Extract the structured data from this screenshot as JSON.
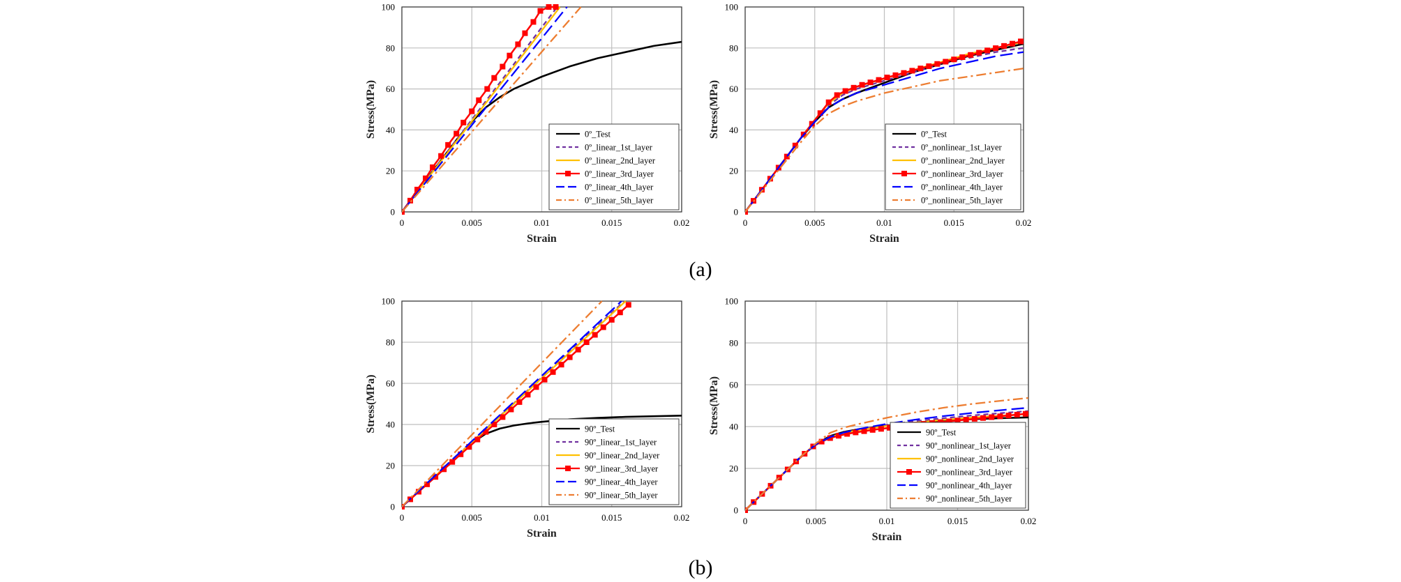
{
  "captions": {
    "a": "(a)",
    "b": "(b)"
  },
  "chart_data": [
    {
      "type": "line",
      "panel": "a",
      "position": "left",
      "xlabel": "Strain",
      "ylabel": "Stress(MPa)",
      "xlim": [
        0,
        0.02
      ],
      "ylim": [
        0,
        100
      ],
      "xticks": [
        "0",
        "0.005",
        "0.01",
        "0.015",
        "0.02"
      ],
      "yticks": [
        "0",
        "20",
        "40",
        "60",
        "80",
        "100"
      ],
      "grid": true,
      "legend_position": "bottom-right",
      "series": [
        {
          "name": "0º_Test",
          "color": "#000000",
          "style": "solid",
          "x": [
            0,
            0.001,
            0.002,
            0.003,
            0.004,
            0.005,
            0.006,
            0.007,
            0.008,
            0.009,
            0.01,
            0.012,
            0.014,
            0.016,
            0.018,
            0.02
          ],
          "y": [
            0,
            9,
            18,
            27,
            36,
            44,
            51,
            56,
            60,
            63,
            66,
            71,
            75,
            78,
            81,
            83
          ]
        },
        {
          "name": "0º_linear_1st_layer",
          "color": "#7030a0",
          "style": "dash",
          "x": [
            0,
            0.0111
          ],
          "y": [
            0,
            100
          ]
        },
        {
          "name": "0º_linear_2nd_layer",
          "color": "#ffc000",
          "style": "solid",
          "x": [
            0,
            0.0113
          ],
          "y": [
            0,
            100
          ]
        },
        {
          "name": "0º_linear_3rd_layer",
          "color": "#ff0000",
          "style": "solid-square",
          "x": [
            0,
            0.0006,
            0.0011,
            0.0017,
            0.0022,
            0.0028,
            0.0033,
            0.0039,
            0.0044,
            0.005,
            0.0055,
            0.0061,
            0.0066,
            0.0072,
            0.0077,
            0.0083,
            0.0088,
            0.0094,
            0.0099,
            0.0105,
            0.011
          ],
          "y": [
            0,
            5.5,
            10.9,
            16.4,
            21.8,
            27.3,
            32.7,
            38.2,
            43.6,
            49.1,
            54.5,
            60,
            65.4,
            70.9,
            76.3,
            81.8,
            87.2,
            92.7,
            98.1,
            100,
            100
          ]
        },
        {
          "name": "0º_linear_4th_layer",
          "color": "#0000ff",
          "style": "longdash",
          "x": [
            0,
            0.0118
          ],
          "y": [
            0,
            100
          ]
        },
        {
          "name": "0º_linear_5th_layer",
          "color": "#ed7d31",
          "style": "dashdot",
          "x": [
            0,
            0.0128
          ],
          "y": [
            0,
            100
          ]
        }
      ]
    },
    {
      "type": "line",
      "panel": "a",
      "position": "right",
      "xlabel": "Strain",
      "ylabel": "Stress(MPa)",
      "xlim": [
        0,
        0.02
      ],
      "ylim": [
        0,
        100
      ],
      "xticks": [
        "0",
        "0.005",
        "0.01",
        "0.015",
        "0.02"
      ],
      "yticks": [
        "0",
        "20",
        "40",
        "60",
        "80",
        "100"
      ],
      "grid": true,
      "legend_position": "bottom-right",
      "series": [
        {
          "name": "0º_Test",
          "color": "#000000",
          "style": "solid",
          "x": [
            0,
            0.001,
            0.002,
            0.003,
            0.004,
            0.005,
            0.006,
            0.007,
            0.008,
            0.01,
            0.012,
            0.014,
            0.016,
            0.018,
            0.02
          ],
          "y": [
            0,
            9,
            18,
            27,
            36,
            44,
            51,
            55,
            58,
            63,
            68,
            72,
            76,
            79,
            82
          ]
        },
        {
          "name": "0º_nonlinear_1st_layer",
          "color": "#7030a0",
          "style": "dash",
          "x": [
            0,
            0.001,
            0.002,
            0.003,
            0.004,
            0.005,
            0.006,
            0.007,
            0.008,
            0.01,
            0.012,
            0.014,
            0.016,
            0.018,
            0.02
          ],
          "y": [
            0,
            9,
            18,
            27,
            36,
            45,
            52,
            57,
            60,
            64,
            68,
            72,
            75,
            78,
            80
          ]
        },
        {
          "name": "0º_nonlinear_2nd_layer",
          "color": "#ffc000",
          "style": "solid",
          "x": [
            0,
            0.001,
            0.002,
            0.003,
            0.004,
            0.005,
            0.006,
            0.007,
            0.008,
            0.01,
            0.012,
            0.014,
            0.016,
            0.018,
            0.02
          ],
          "y": [
            0,
            9,
            18,
            27,
            36,
            45,
            53,
            58,
            61,
            65,
            69,
            73,
            77,
            80,
            83
          ]
        },
        {
          "name": "0º_nonlinear_3rd_layer",
          "color": "#ff0000",
          "style": "solid-square",
          "x": [
            0,
            0.0006,
            0.0012,
            0.0018,
            0.0024,
            0.003,
            0.0036,
            0.0042,
            0.0048,
            0.0054,
            0.006,
            0.0066,
            0.0072,
            0.0078,
            0.0084,
            0.009,
            0.0096,
            0.0102,
            0.0108,
            0.0114,
            0.012,
            0.0126,
            0.0132,
            0.0138,
            0.0144,
            0.015,
            0.0156,
            0.0162,
            0.0168,
            0.0174,
            0.018,
            0.0186,
            0.0192,
            0.0198
          ],
          "y": [
            0,
            5.4,
            10.8,
            16.2,
            21.6,
            27,
            32.4,
            37.8,
            43,
            48.2,
            53.5,
            57,
            59,
            60.6,
            62,
            63.2,
            64.4,
            65.6,
            66.7,
            67.8,
            68.9,
            70,
            71.1,
            72.2,
            73.3,
            74.4,
            75.5,
            76.6,
            77.7,
            78.8,
            79.9,
            81,
            82.1,
            83.2
          ]
        },
        {
          "name": "0º_nonlinear_4th_layer",
          "color": "#0000ff",
          "style": "longdash",
          "x": [
            0,
            0.001,
            0.002,
            0.003,
            0.004,
            0.005,
            0.006,
            0.007,
            0.008,
            0.01,
            0.012,
            0.014,
            0.016,
            0.018,
            0.02
          ],
          "y": [
            0,
            9,
            18,
            27,
            36,
            44,
            51,
            55,
            58,
            62,
            66,
            70,
            73,
            76,
            78
          ]
        },
        {
          "name": "0º_nonlinear_5th_layer",
          "color": "#ed7d31",
          "style": "dashdot",
          "x": [
            0,
            0.001,
            0.002,
            0.003,
            0.004,
            0.005,
            0.006,
            0.007,
            0.008,
            0.01,
            0.012,
            0.014,
            0.016,
            0.018,
            0.02
          ],
          "y": [
            0,
            8.5,
            17,
            25.5,
            34,
            42,
            48,
            51.5,
            54,
            58,
            61,
            64,
            66,
            68,
            70
          ]
        }
      ]
    },
    {
      "type": "line",
      "panel": "b",
      "position": "left",
      "xlabel": "Strain",
      "ylabel": "Stress(MPa)",
      "xlim": [
        0,
        0.02
      ],
      "ylim": [
        0,
        100
      ],
      "xticks": [
        "0",
        "0.005",
        "0.01",
        "0.015",
        "0.02"
      ],
      "yticks": [
        "0",
        "20",
        "40",
        "60",
        "80",
        "100"
      ],
      "grid": true,
      "legend_position": "bottom-right",
      "series": [
        {
          "name": "90º_Test",
          "color": "#000000",
          "style": "solid",
          "x": [
            0,
            0.001,
            0.002,
            0.003,
            0.004,
            0.005,
            0.006,
            0.007,
            0.008,
            0.009,
            0.01,
            0.012,
            0.014,
            0.016,
            0.018,
            0.02
          ],
          "y": [
            0,
            6.2,
            12.4,
            18.6,
            24.8,
            31,
            35.5,
            38,
            39.5,
            40.5,
            41.3,
            42.5,
            43.2,
            43.7,
            44,
            44.3
          ]
        },
        {
          "name": "90º_linear_1st_layer",
          "color": "#7030a0",
          "style": "dash",
          "x": [
            0,
            0.0159
          ],
          "y": [
            0,
            100
          ]
        },
        {
          "name": "90º_linear_2nd_layer",
          "color": "#ffc000",
          "style": "solid",
          "x": [
            0,
            0.016
          ],
          "y": [
            0,
            100
          ]
        },
        {
          "name": "90º_linear_3rd_layer",
          "color": "#ff0000",
          "style": "solid-square",
          "x": [
            0,
            0.0006,
            0.0012,
            0.0018,
            0.0024,
            0.003,
            0.0036,
            0.0042,
            0.0048,
            0.0054,
            0.006,
            0.0066,
            0.0072,
            0.0078,
            0.0084,
            0.009,
            0.0096,
            0.0102,
            0.0108,
            0.0114,
            0.012,
            0.0126,
            0.0132,
            0.0138,
            0.0144,
            0.015,
            0.0156,
            0.0162
          ],
          "y": [
            0,
            3.6,
            7.3,
            10.9,
            14.5,
            18.2,
            21.8,
            25.5,
            29.1,
            32.7,
            36.4,
            40,
            43.6,
            47.3,
            50.9,
            54.5,
            58.2,
            61.8,
            65.5,
            69.1,
            72.7,
            76.4,
            80,
            83.6,
            87.3,
            90.9,
            94.5,
            98.2
          ]
        },
        {
          "name": "90º_linear_4th_layer",
          "color": "#0000ff",
          "style": "longdash",
          "x": [
            0,
            0.0157
          ],
          "y": [
            0,
            100
          ]
        },
        {
          "name": "90º_linear_5th_layer",
          "color": "#ed7d31",
          "style": "dashdot",
          "x": [
            0,
            0.0143
          ],
          "y": [
            0,
            100
          ]
        }
      ]
    },
    {
      "type": "line",
      "panel": "b",
      "position": "right",
      "xlabel": "Strain",
      "ylabel": "Stress(MPa)",
      "xlim": [
        0,
        0.02
      ],
      "ylim": [
        0,
        100
      ],
      "xticks": [
        "0",
        "0.005",
        "0.01",
        "0.015",
        "0.02"
      ],
      "yticks": [
        "0",
        "20",
        "40",
        "60",
        "80",
        "100"
      ],
      "grid": true,
      "legend_position": "bottom-right",
      "series": [
        {
          "name": "90º_Test",
          "color": "#000000",
          "style": "solid",
          "x": [
            0,
            0.001,
            0.002,
            0.003,
            0.004,
            0.005,
            0.006,
            0.007,
            0.008,
            0.01,
            0.012,
            0.014,
            0.016,
            0.018,
            0.02
          ],
          "y": [
            0,
            6.5,
            13,
            19.5,
            26,
            31.5,
            35.5,
            37.5,
            38.7,
            40.5,
            41.8,
            42.8,
            43.5,
            44,
            44.4
          ]
        },
        {
          "name": "90º_nonlinear_1st_layer",
          "color": "#7030a0",
          "style": "dash",
          "x": [
            0,
            0.001,
            0.002,
            0.003,
            0.004,
            0.005,
            0.006,
            0.007,
            0.008,
            0.01,
            0.012,
            0.014,
            0.016,
            0.018,
            0.02
          ],
          "y": [
            0,
            6.5,
            13,
            19.5,
            26,
            31.5,
            35,
            37,
            38.5,
            40.8,
            42.6,
            44,
            45.3,
            46.4,
            47.4
          ]
        },
        {
          "name": "90º_nonlinear_2nd_layer",
          "color": "#ffc000",
          "style": "solid",
          "x": [
            0,
            0.001,
            0.002,
            0.003,
            0.004,
            0.005,
            0.006,
            0.007,
            0.008,
            0.01,
            0.012,
            0.014,
            0.016,
            0.018,
            0.02
          ],
          "y": [
            0,
            6.5,
            13,
            19.5,
            26,
            31.5,
            35,
            37,
            38.3,
            40.3,
            41.9,
            43.2,
            44.3,
            45.2,
            46
          ]
        },
        {
          "name": "90º_nonlinear_3rd_layer",
          "color": "#ff0000",
          "style": "solid-square",
          "x": [
            0,
            0.0006,
            0.0012,
            0.0018,
            0.0024,
            0.003,
            0.0036,
            0.0042,
            0.0048,
            0.0054,
            0.006,
            0.0066,
            0.0072,
            0.0078,
            0.0084,
            0.009,
            0.0096,
            0.0102,
            0.0108,
            0.0114,
            0.012,
            0.0126,
            0.0132,
            0.0138,
            0.0144,
            0.015,
            0.0156,
            0.0162,
            0.0168,
            0.0174,
            0.018,
            0.0186,
            0.0192,
            0.0198
          ],
          "y": [
            0,
            3.9,
            7.8,
            11.7,
            15.6,
            19.5,
            23.3,
            27,
            30.5,
            32.8,
            34.5,
            35.6,
            36.5,
            37.2,
            37.8,
            38.4,
            38.9,
            39.4,
            39.9,
            40.4,
            40.9,
            41.3,
            41.7,
            42.1,
            42.5,
            42.9,
            43.3,
            43.7,
            44.1,
            44.5,
            44.9,
            45.3,
            45.7,
            46.1
          ]
        },
        {
          "name": "90º_nonlinear_4th_layer",
          "color": "#0000ff",
          "style": "longdash",
          "x": [
            0,
            0.001,
            0.002,
            0.003,
            0.004,
            0.005,
            0.006,
            0.007,
            0.008,
            0.01,
            0.012,
            0.014,
            0.016,
            0.018,
            0.02
          ],
          "y": [
            0,
            6.5,
            13,
            19.5,
            26,
            31.5,
            35,
            37.2,
            38.8,
            41.3,
            43.3,
            45,
            46.5,
            47.8,
            49
          ]
        },
        {
          "name": "90º_nonlinear_5th_layer",
          "color": "#ed7d31",
          "style": "dashdot",
          "x": [
            0,
            0.001,
            0.002,
            0.003,
            0.004,
            0.005,
            0.006,
            0.007,
            0.008,
            0.01,
            0.012,
            0.014,
            0.016,
            0.018,
            0.02
          ],
          "y": [
            0,
            6.5,
            13,
            19.5,
            26,
            32,
            37,
            39.5,
            41.2,
            44.2,
            46.8,
            49,
            50.8,
            52.3,
            53.7
          ]
        }
      ]
    }
  ]
}
